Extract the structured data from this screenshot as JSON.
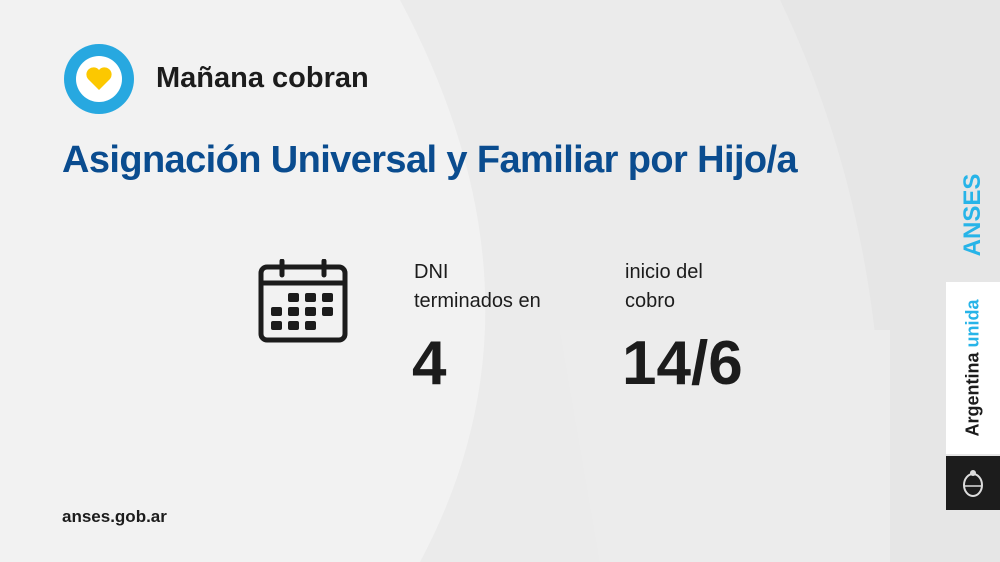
{
  "header": {
    "subtitle": "Mañana cobran",
    "title": "Asignación Universal y Familiar por Hijo/a"
  },
  "info": {
    "dni_label_1": "DNI",
    "dni_label_2": "terminados en",
    "dni_value": "4",
    "date_label_1": "inicio del",
    "date_label_2": "cobro",
    "date_value": "14/6"
  },
  "footer": {
    "url": "anses.gob.ar"
  },
  "brand": {
    "anses": "ANSES",
    "argentina": "Argentina",
    "unida": "unida"
  },
  "colors": {
    "title": "#0a4c8f",
    "accent": "#27b4e8",
    "heart": "#fcc800",
    "text": "#1c1c1c"
  },
  "icons": [
    "heart-icon",
    "calendar-icon",
    "coat-of-arms-icon"
  ]
}
